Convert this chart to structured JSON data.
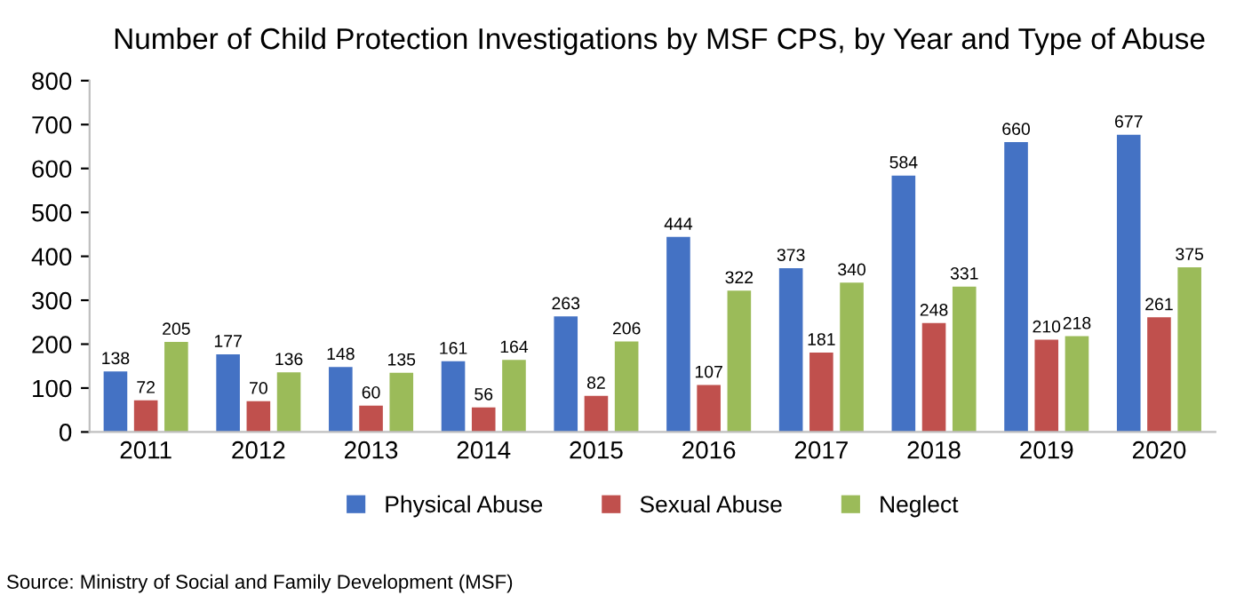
{
  "chart_data": {
    "type": "bar",
    "title": "Number of Child Protection Investigations by MSF CPS, by Year and Type of Abuse",
    "categories": [
      "2011",
      "2012",
      "2013",
      "2014",
      "2015",
      "2016",
      "2017",
      "2018",
      "2019",
      "2020"
    ],
    "series": [
      {
        "name": "Physical Abuse",
        "color": "#4472c4",
        "values": [
          138,
          177,
          148,
          161,
          263,
          444,
          373,
          584,
          660,
          677
        ]
      },
      {
        "name": "Sexual Abuse",
        "color": "#c0504d",
        "values": [
          72,
          70,
          60,
          56,
          82,
          107,
          181,
          248,
          210,
          261
        ]
      },
      {
        "name": "Neglect",
        "color": "#9bbb59",
        "values": [
          205,
          136,
          135,
          164,
          206,
          322,
          340,
          331,
          218,
          375
        ]
      }
    ],
    "ylim": [
      0,
      800
    ],
    "yticks": [
      0,
      100,
      200,
      300,
      400,
      500,
      600,
      700,
      800
    ],
    "data_labels": true,
    "grid": false,
    "legend": "bottom",
    "annotations": [
      "Source: Ministry of Social and Family Development (MSF)"
    ]
  }
}
